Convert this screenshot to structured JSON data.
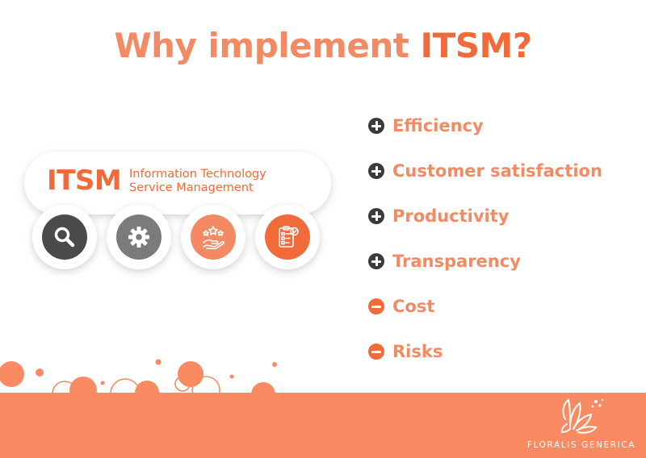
{
  "title": {
    "part1": "Why implement ",
    "part2": "ITSM?"
  },
  "card": {
    "acronym": "ITSM",
    "line1": "Information Technology",
    "line2": "Service Management"
  },
  "icons": [
    {
      "name": "search-icon",
      "bg": "#4a4a4a"
    },
    {
      "name": "gear-icon",
      "bg": "#7b7b7b"
    },
    {
      "name": "customer-rating-icon",
      "bg": "#f48a63"
    },
    {
      "name": "checklist-icon",
      "bg": "#f06a3a"
    }
  ],
  "items": [
    {
      "label": "Efficiency",
      "type": "plus"
    },
    {
      "label": "Customer satisfaction",
      "type": "plus"
    },
    {
      "label": "Productivity",
      "type": "plus"
    },
    {
      "label": "Transparency",
      "type": "plus"
    },
    {
      "label": "Cost",
      "type": "minus"
    },
    {
      "label": "Risks",
      "type": "minus"
    }
  ],
  "brand": {
    "name": "FLORALIS GENERICA"
  },
  "colors": {
    "accent": "#f06a3a",
    "accent_light": "#f28b63",
    "band": "#fa8a62",
    "dark": "#3a3a3a"
  }
}
